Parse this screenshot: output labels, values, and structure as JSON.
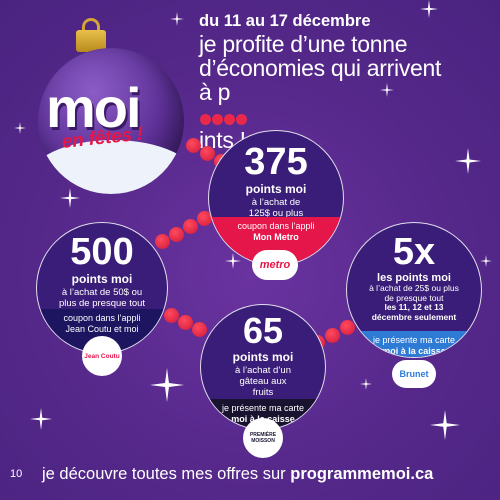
{
  "header": {
    "date_line": "du 11 au 17 décembre",
    "tagline_1": "je profite d’une tonne",
    "tagline_2": "d’économies qui arrivent",
    "tagline_3_prefix": "à p",
    "tagline_3_suffix": "ints !"
  },
  "ornament": {
    "logo": "moi",
    "subtitle": "en fêtes !"
  },
  "offers": [
    {
      "number": "375",
      "points_label": "points moi",
      "details": "à l’achat de 125$ ou plus",
      "banner_line1": "coupon dans l’appli",
      "banner_line2": "Mon Metro",
      "logo": "metro",
      "banner_color": "#e5164a"
    },
    {
      "number": "500",
      "points_label": "points moi",
      "details": "à l’achat de 50$ ou plus de presque tout",
      "banner_line1": "coupon dans l’appli",
      "banner_line2": "Jean Coutu et moi",
      "logo": "Jean Coutu",
      "banner_color": "#1d1560"
    },
    {
      "number": "65",
      "points_label": "points moi",
      "details": "à l’achat d’un gâteau aux fruits",
      "banner_line1": "je présente ma carte",
      "banner_line2": "moi à la caisse",
      "logo": "PREMIÈRE MOISSON",
      "banner_color": "#1a1330"
    },
    {
      "number": "5x",
      "points_label": "les points moi",
      "details": "à l’achat de 25$ ou plus de presque tout",
      "details_bold": "les 11, 12 et 13 décembre seulement",
      "banner_line1": "je présente ma carte",
      "banner_line2": "moi à la caisse",
      "logo": "Brunet",
      "banner_color": "#2e7bd6"
    }
  ],
  "footer": {
    "page_number": "10",
    "text": "je découvre toutes mes offres  sur",
    "url": "programmemoi.ca"
  },
  "colors": {
    "background": "#5a2a8c",
    "accent_red": "#e5164a",
    "circle_fill": "#3a1d78"
  }
}
